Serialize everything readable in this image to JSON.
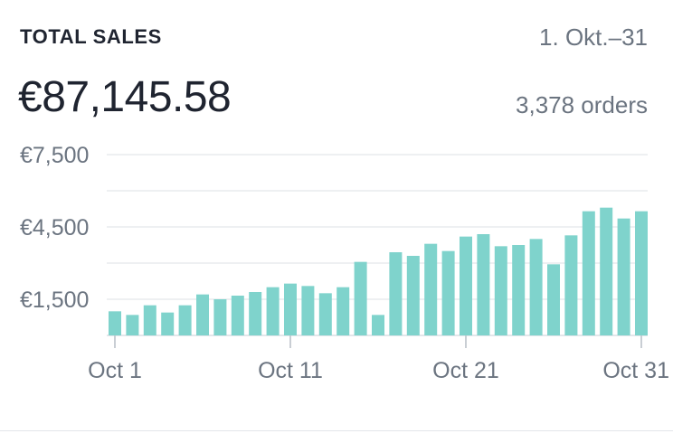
{
  "header": {
    "title": "TOTAL SALES",
    "date_range": "1. Okt.–31"
  },
  "summary": {
    "total": "€87,145.58",
    "orders": "3,378 orders"
  },
  "colors": {
    "bar": "#7fd3cc",
    "grid": "#dde1e5",
    "text_muted": "#6b7480",
    "text_dark": "#1f2430"
  },
  "chart_data": {
    "type": "bar",
    "title": "",
    "xlabel": "",
    "ylabel": "",
    "ylim": [
      0,
      7500
    ],
    "y_ticks": [
      1500,
      4500,
      7500
    ],
    "y_tick_labels": [
      "€1,500",
      "€4,500",
      "€7,500"
    ],
    "gridlines": [
      0,
      1500,
      3000,
      4500,
      6000,
      7500
    ],
    "grid": true,
    "x_tick_labels": [
      {
        "day": 1,
        "label": "Oct 1"
      },
      {
        "day": 11,
        "label": "Oct 11"
      },
      {
        "day": 21,
        "label": "Oct 21"
      },
      {
        "day": 31,
        "label": "Oct 31"
      }
    ],
    "categories": [
      1,
      2,
      3,
      4,
      5,
      6,
      7,
      8,
      9,
      10,
      11,
      12,
      13,
      14,
      15,
      16,
      17,
      18,
      19,
      20,
      21,
      22,
      23,
      24,
      25,
      26,
      27,
      28,
      29,
      30,
      31
    ],
    "values": [
      1000,
      850,
      1250,
      950,
      1250,
      1700,
      1500,
      1650,
      1800,
      2000,
      2150,
      2050,
      1750,
      2000,
      3050,
      850,
      3450,
      3300,
      3800,
      3500,
      4100,
      4200,
      3700,
      3750,
      4000,
      2950,
      4150,
      5150,
      5300,
      4850,
      5150
    ]
  }
}
